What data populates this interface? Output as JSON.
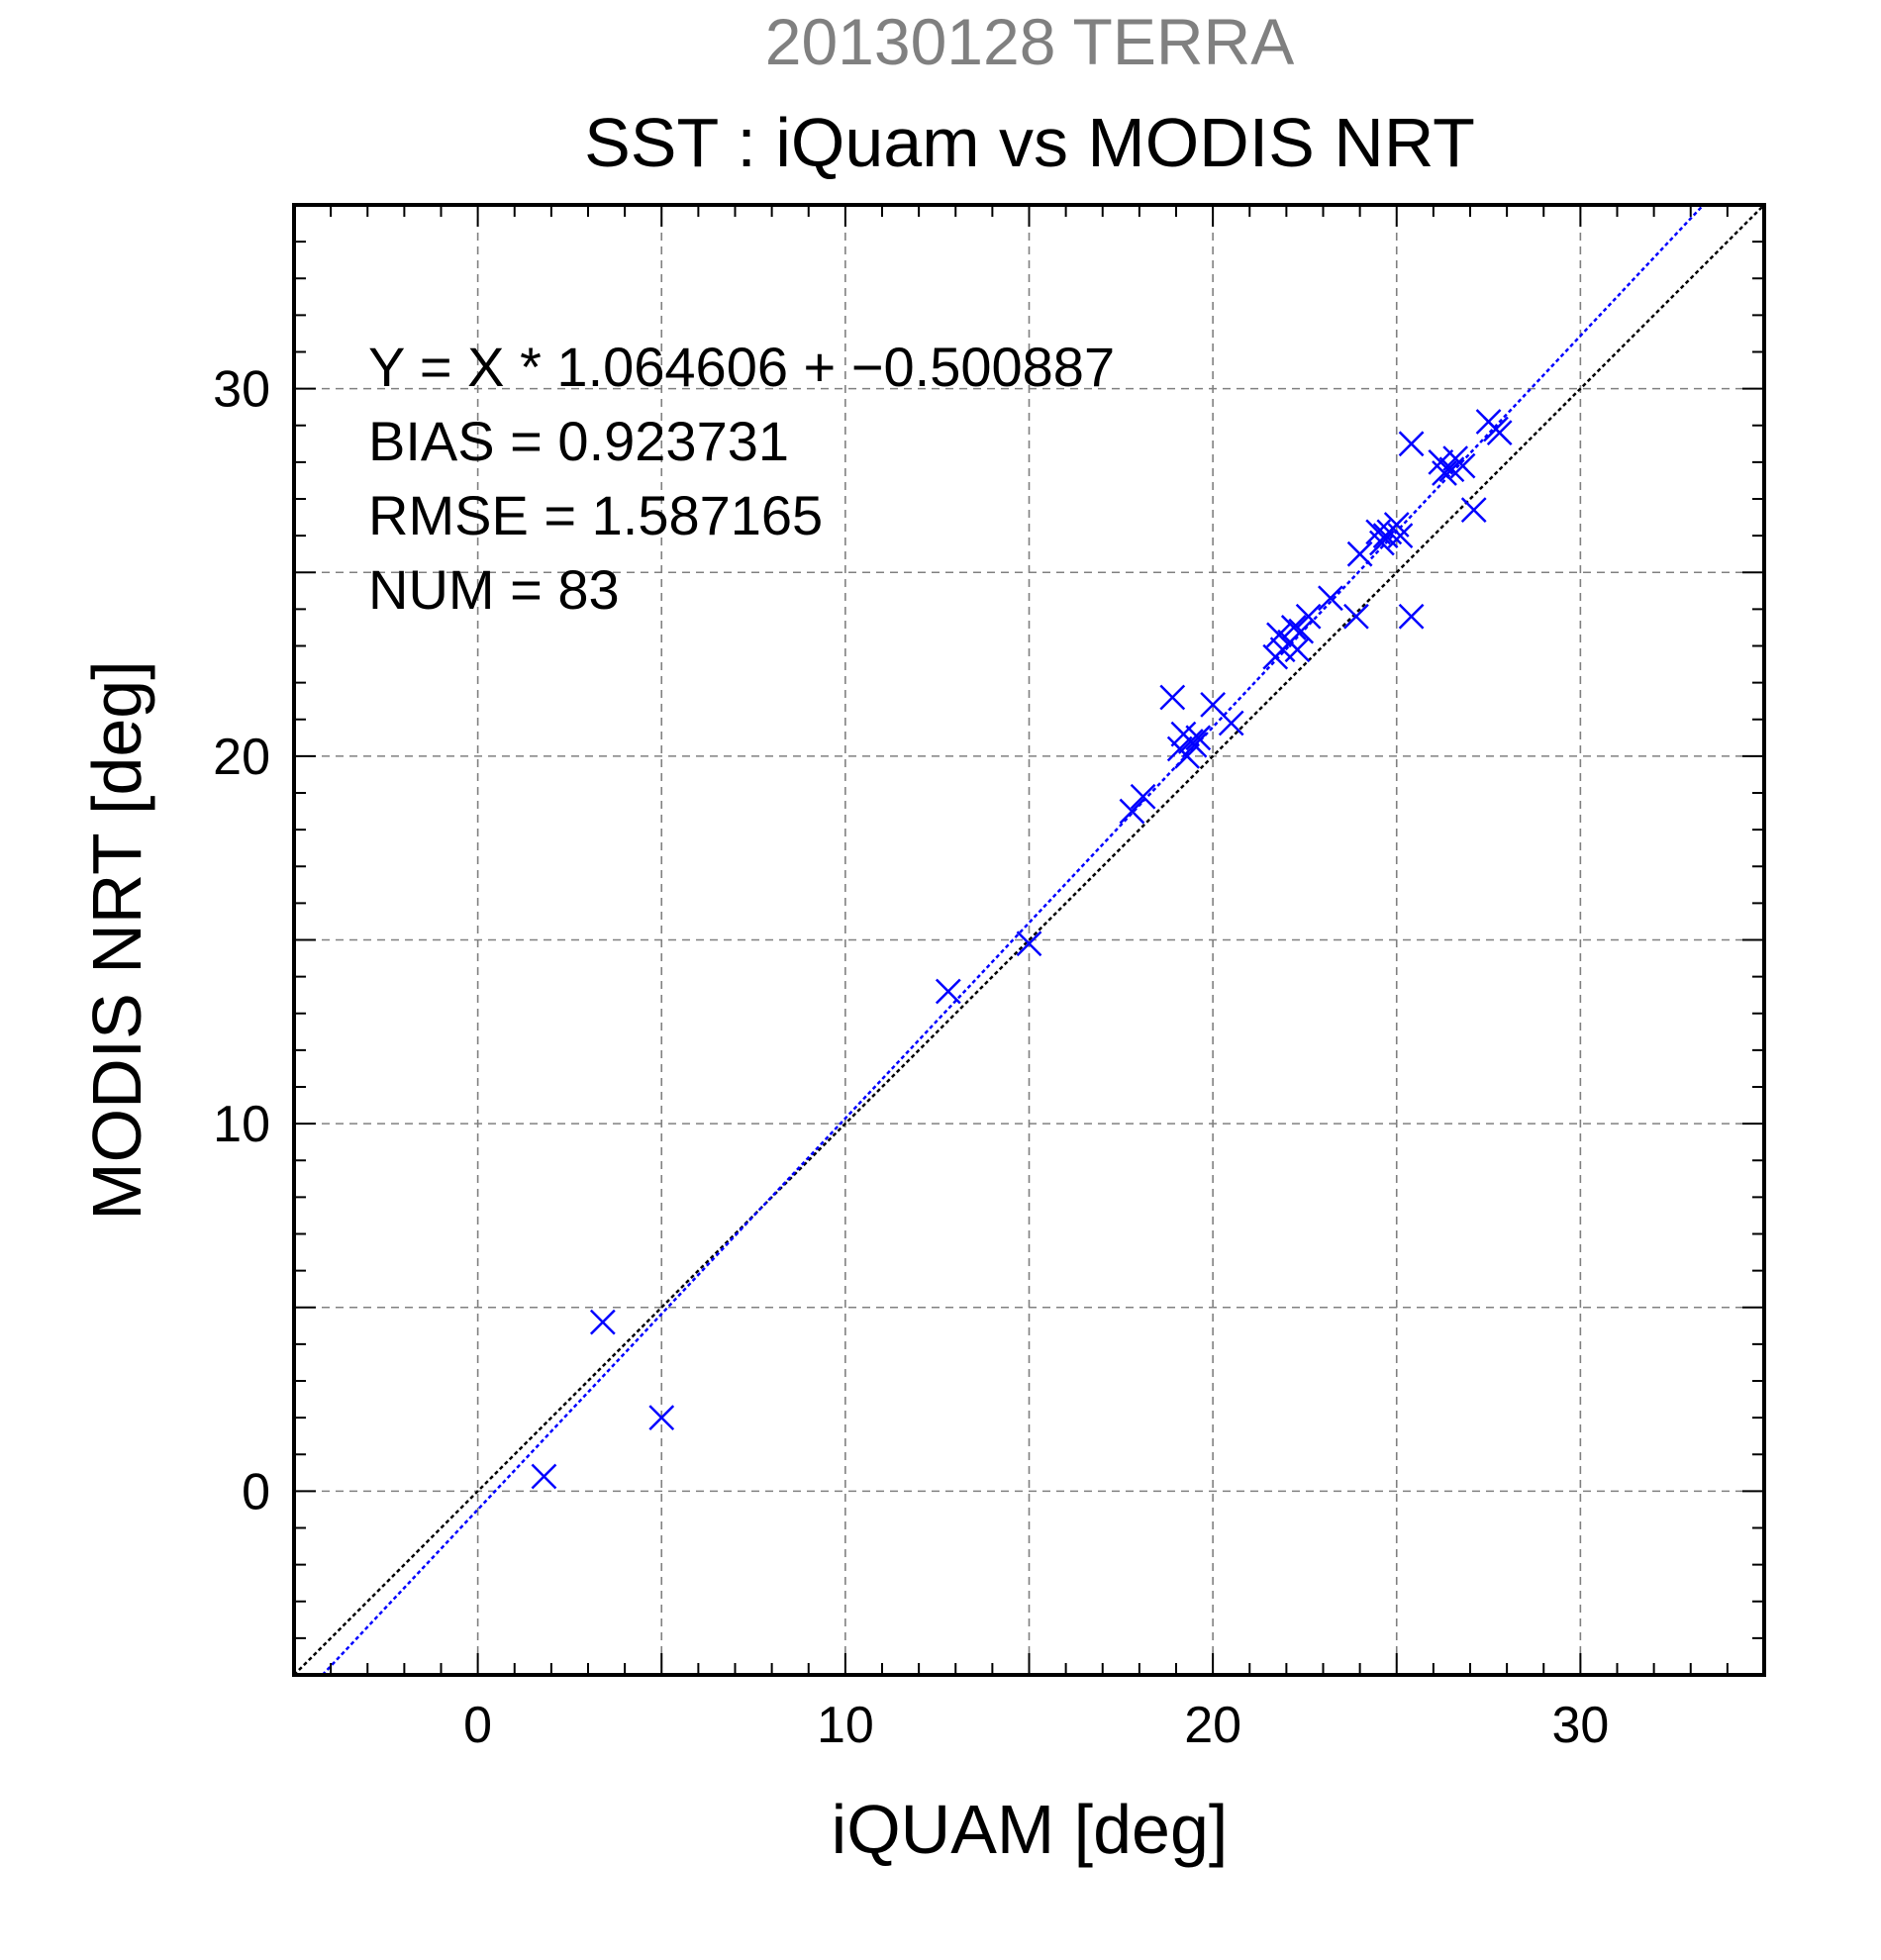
{
  "chart_data": {
    "type": "scatter",
    "supertitle": "20130128 TERRA",
    "title": "SST : iQuam vs MODIS NRT",
    "xlabel": "iQUAM [deg]",
    "ylabel": "MODIS NRT [deg]",
    "xlim": [
      -5,
      35
    ],
    "ylim": [
      -5,
      35
    ],
    "xticks": [
      0,
      10,
      20,
      30
    ],
    "yticks": [
      0,
      10,
      20,
      30
    ],
    "grid": true,
    "stats": [
      "Y = X * 1.064606 + −0.500887",
      "BIAS = 0.923731",
      "RMSE = 1.587165",
      "NUM = 83"
    ],
    "colors": {
      "points": "#0000ff",
      "fit_line": "#0000ff",
      "identity_line": "#000000",
      "grid": "#808080",
      "supertitle": "#808080"
    },
    "lines": [
      {
        "kind": "identity",
        "slope": 1.0,
        "intercept": 0.0,
        "style": "dotted"
      },
      {
        "kind": "fit",
        "slope": 1.064606,
        "intercept": -0.500887,
        "style": "dotted"
      }
    ],
    "series": [
      {
        "marker": "x",
        "points": [
          [
            1.8,
            0.4
          ],
          [
            3.4,
            4.6
          ],
          [
            5.0,
            2.0
          ],
          [
            12.8,
            13.6
          ],
          [
            15.0,
            14.9
          ],
          [
            17.8,
            18.5
          ],
          [
            18.1,
            18.9
          ],
          [
            18.9,
            21.6
          ],
          [
            19.1,
            20.2
          ],
          [
            19.2,
            20.6
          ],
          [
            19.3,
            20.0
          ],
          [
            19.4,
            20.4
          ],
          [
            19.6,
            20.5
          ],
          [
            19.5,
            20.3
          ],
          [
            20.0,
            21.4
          ],
          [
            20.5,
            20.9
          ],
          [
            21.7,
            22.7
          ],
          [
            21.8,
            23.3
          ],
          [
            21.9,
            22.9
          ],
          [
            22.1,
            23.1
          ],
          [
            22.2,
            23.5
          ],
          [
            22.3,
            22.9
          ],
          [
            22.4,
            23.4
          ],
          [
            22.6,
            23.8
          ],
          [
            23.2,
            24.3
          ],
          [
            23.9,
            23.8
          ],
          [
            24.0,
            25.5
          ],
          [
            24.5,
            26.1
          ],
          [
            24.6,
            25.8
          ],
          [
            24.7,
            26.0
          ],
          [
            24.8,
            26.1
          ],
          [
            25.0,
            26.3
          ],
          [
            25.1,
            26.0
          ],
          [
            25.4,
            28.5
          ],
          [
            25.4,
            23.8
          ],
          [
            26.2,
            28.0
          ],
          [
            26.3,
            27.7
          ],
          [
            26.5,
            27.8
          ],
          [
            26.6,
            28.1
          ],
          [
            26.8,
            27.9
          ],
          [
            27.1,
            26.7
          ],
          [
            27.5,
            29.1
          ],
          [
            27.7,
            28.9
          ],
          [
            27.8,
            28.8
          ]
        ]
      }
    ]
  }
}
